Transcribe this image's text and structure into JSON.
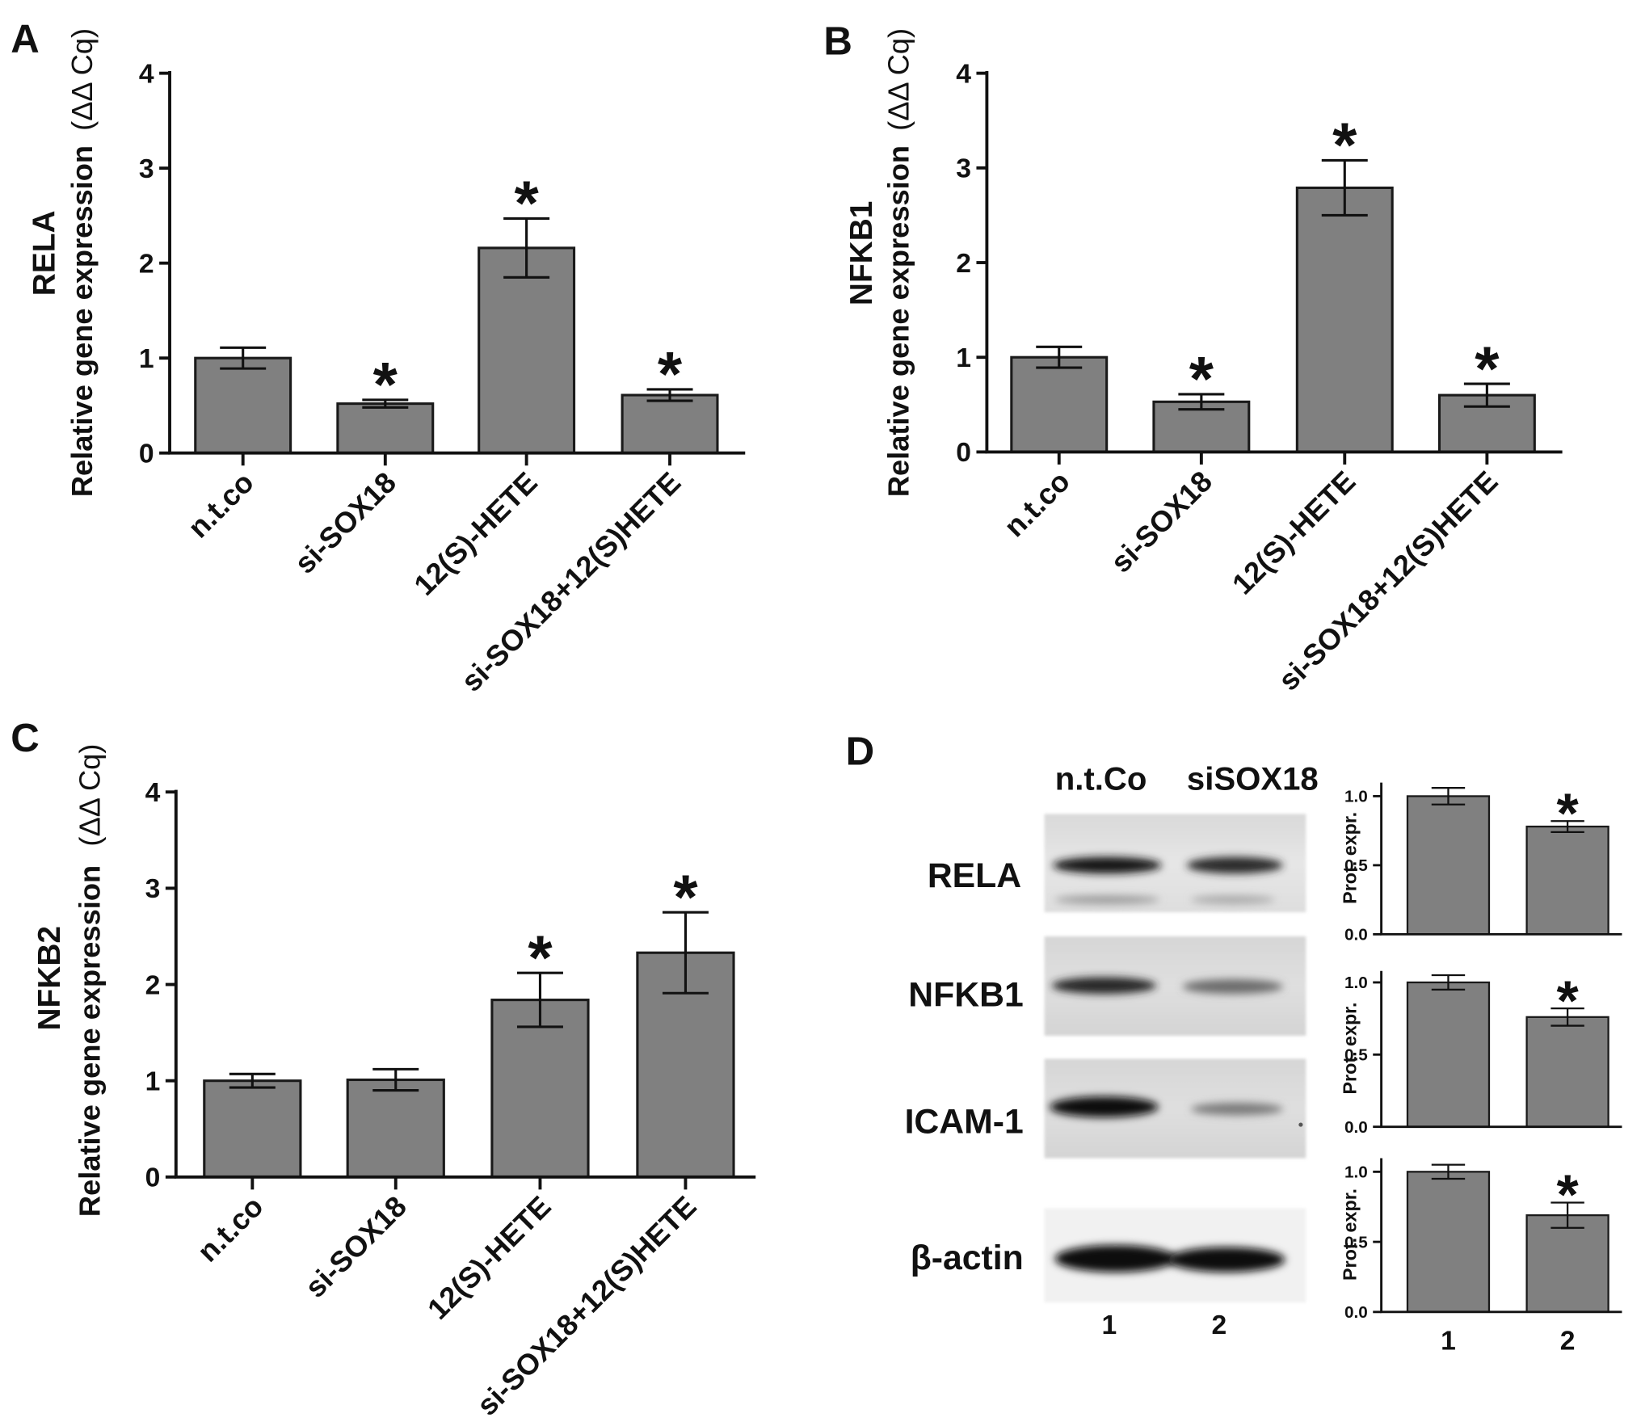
{
  "blot": {
    "panel": "D",
    "lane_headers": [
      "n.t.Co",
      "siSOX18"
    ],
    "rows": [
      "RELA",
      "NFKB1",
      "ICAM-1",
      "β-actin"
    ],
    "lane_numbers": [
      "1",
      "2"
    ]
  },
  "chart_data": [
    {
      "panel": "A",
      "type": "bar",
      "categories": [
        "n.t.co",
        "si-SOX18",
        "12(S)-HETE",
        "si-SOX18+12(S)HETE"
      ],
      "values": [
        1.0,
        0.52,
        2.16,
        0.61
      ],
      "errors": [
        0.11,
        0.04,
        0.31,
        0.06
      ],
      "significance": [
        "",
        "*",
        "*",
        "*"
      ],
      "ylabel_gene": "RELA",
      "ylabel": "Relative gene expression",
      "ylabel_unit": "(ΔΔ Cq)",
      "yticks": [
        "0",
        "1",
        "2",
        "3",
        "4"
      ],
      "ylim": [
        0,
        4
      ],
      "bar_color": "#808080"
    },
    {
      "panel": "B",
      "type": "bar",
      "categories": [
        "n.t.co",
        "si-SOX18",
        "12(S)-HETE",
        "si-SOX18+12(S)HETE"
      ],
      "values": [
        1.0,
        0.53,
        2.79,
        0.6
      ],
      "errors": [
        0.11,
        0.08,
        0.29,
        0.12
      ],
      "significance": [
        "",
        "*",
        "*",
        "*"
      ],
      "ylabel_gene": "NFKB1",
      "ylabel": "Relative gene expression",
      "ylabel_unit": "(ΔΔ Cq)",
      "yticks": [
        "0",
        "1",
        "2",
        "3",
        "4"
      ],
      "ylim": [
        0,
        4
      ],
      "bar_color": "#808080"
    },
    {
      "panel": "C",
      "type": "bar",
      "categories": [
        "n.t.co",
        "si-SOX18",
        "12(S)-HETE",
        "si-SOX18+12(S)HETE"
      ],
      "values": [
        1.0,
        1.01,
        1.84,
        2.33
      ],
      "errors": [
        0.07,
        0.11,
        0.28,
        0.42
      ],
      "significance": [
        "",
        "",
        "*",
        "*"
      ],
      "ylabel_gene": "NFKB2",
      "ylabel": "Relative gene expression",
      "ylabel_unit": "(ΔΔ Cq)",
      "yticks": [
        "0",
        "1",
        "2",
        "3",
        "4"
      ],
      "ylim": [
        0,
        4
      ],
      "bar_color": "#808080"
    },
    {
      "type": "bar",
      "values": [
        1.0,
        0.78
      ],
      "errors": [
        0.06,
        0.04
      ],
      "significance": [
        "",
        "*"
      ],
      "ylabel": "Prot. expr.",
      "yticks": [
        "0.0",
        "0.5",
        "1.0"
      ],
      "ylim": [
        0,
        1.1
      ],
      "bar_color": "#808080"
    },
    {
      "type": "bar",
      "values": [
        1.0,
        0.76
      ],
      "errors": [
        0.05,
        0.06
      ],
      "significance": [
        "",
        "*"
      ],
      "ylabel": "Prot. expr.",
      "yticks": [
        "0.0",
        "0.5",
        "1.0"
      ],
      "ylim": [
        0,
        1.1
      ],
      "bar_color": "#808080"
    },
    {
      "type": "bar",
      "categories": [
        "1",
        "2"
      ],
      "values": [
        1.0,
        0.69
      ],
      "errors": [
        0.05,
        0.09
      ],
      "significance": [
        "",
        "*"
      ],
      "ylabel": "Prot. expr.",
      "yticks": [
        "0.0",
        "0.5",
        "1.0"
      ],
      "ylim": [
        0,
        1.1
      ],
      "bar_color": "#808080"
    }
  ]
}
